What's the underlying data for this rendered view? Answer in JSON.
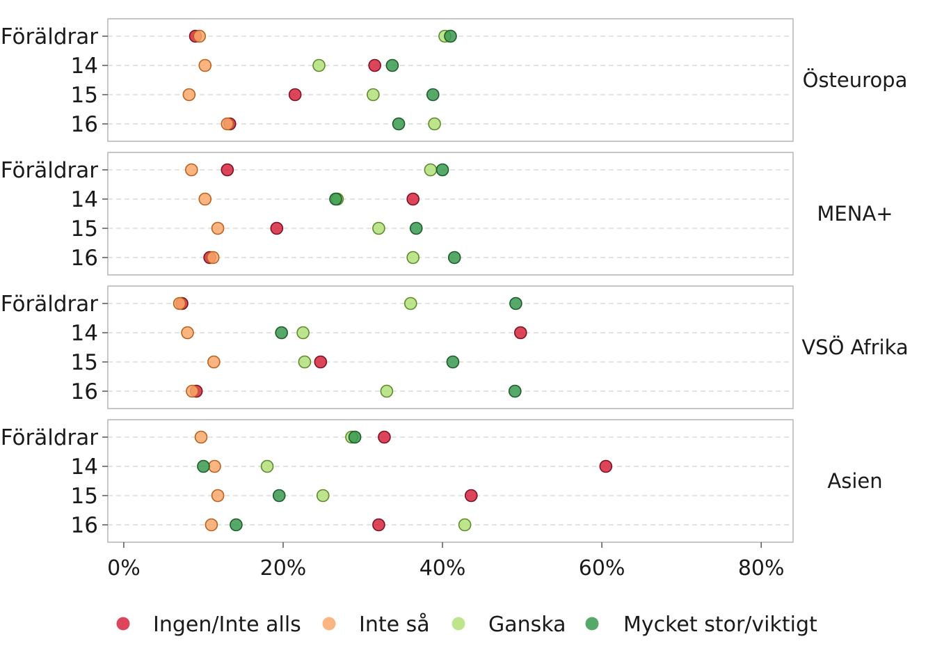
{
  "chart_data": {
    "type": "scatter",
    "facet_by": "region",
    "regions": [
      "Östeuropa",
      "MENA+",
      "VSÖ Afrika",
      "Asien"
    ],
    "categories": [
      "Föräldrar",
      "14",
      "15",
      "16"
    ],
    "x_axis": {
      "ticks": [
        0,
        20,
        40,
        60,
        80
      ],
      "tick_labels": [
        "0%",
        "20%",
        "40%",
        "60%",
        "80%"
      ],
      "xlim": [
        -2,
        84
      ],
      "unit": "%"
    },
    "grid": "horizontal dashed",
    "legend_position": "bottom",
    "series": [
      {
        "name": "Ingen/Inte alls",
        "color": "#d7263d",
        "stroke": "#7a1020",
        "values": {
          "Östeuropa": [
            9.0,
            31.5,
            21.5,
            13.3
          ],
          "MENA+": [
            13.0,
            36.3,
            19.2,
            10.8
          ],
          "VSÖ Afrika": [
            7.3,
            49.8,
            24.7,
            9.1
          ],
          "Asien": [
            32.7,
            60.5,
            43.6,
            32.0
          ]
        }
      },
      {
        "name": "Inte så",
        "color": "#f9a86a",
        "stroke": "#b9601e",
        "values": {
          "Östeuropa": [
            9.5,
            10.2,
            8.2,
            13.0
          ],
          "MENA+": [
            8.5,
            10.2,
            11.8,
            11.2
          ],
          "VSÖ Afrika": [
            7.0,
            8.0,
            11.3,
            8.6
          ],
          "Asien": [
            9.7,
            11.4,
            11.8,
            11.0
          ]
        }
      },
      {
        "name": "Ganska",
        "color": "#b3e07a",
        "stroke": "#5a8a2a",
        "values": {
          "Östeuropa": [
            40.3,
            24.5,
            31.3,
            39.0
          ],
          "MENA+": [
            38.5,
            26.8,
            32.0,
            36.3
          ],
          "VSÖ Afrika": [
            36.0,
            22.5,
            22.7,
            33.0
          ],
          "Asien": [
            28.6,
            18.0,
            25.0,
            42.8
          ]
        }
      },
      {
        "name": "Mycket stor/viktigt",
        "color": "#3a9a50",
        "stroke": "#1d5a2a",
        "values": {
          "Östeuropa": [
            41.0,
            33.7,
            38.8,
            34.5
          ],
          "MENA+": [
            40.0,
            26.6,
            36.7,
            41.5
          ],
          "VSÖ Afrika": [
            49.2,
            19.8,
            41.3,
            49.1
          ],
          "Asien": [
            29.0,
            10.0,
            19.5,
            14.1
          ]
        }
      }
    ]
  }
}
